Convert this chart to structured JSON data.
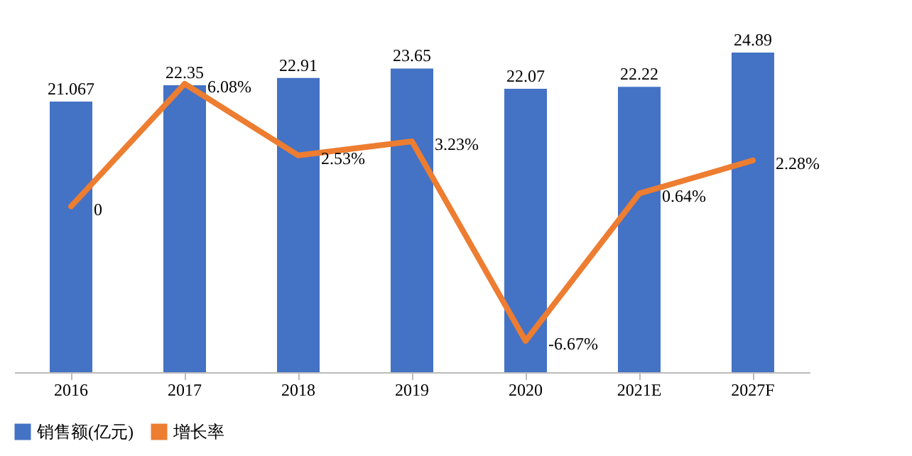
{
  "chart_data": {
    "type": "bar",
    "categories": [
      "2016",
      "2017",
      "2018",
      "2019",
      "2020",
      "2021E",
      "2027F"
    ],
    "series": [
      {
        "name": "销售额(亿元)",
        "color": "#4472c4",
        "values": [
          21.067,
          22.35,
          22.91,
          23.65,
          22.07,
          22.22,
          24.89
        ],
        "value_labels": [
          "21.067",
          "22.35",
          "22.91",
          "23.65",
          "22.07",
          "22.22",
          "24.89"
        ]
      },
      {
        "name": "增长率",
        "type": "line",
        "axis": "y2",
        "color": "#ed7d31",
        "values": [
          0,
          6.08,
          2.53,
          3.23,
          -6.67,
          0.64,
          2.28
        ],
        "value_labels": [
          "0",
          "6.08%",
          "2.53%",
          "3.23%",
          "-6.67%",
          "0.64%",
          "2.28%"
        ]
      }
    ],
    "tick_labels": "x",
    "legend": "bottom",
    "grid": false,
    "marker": "none",
    "line_style": "solid"
  }
}
